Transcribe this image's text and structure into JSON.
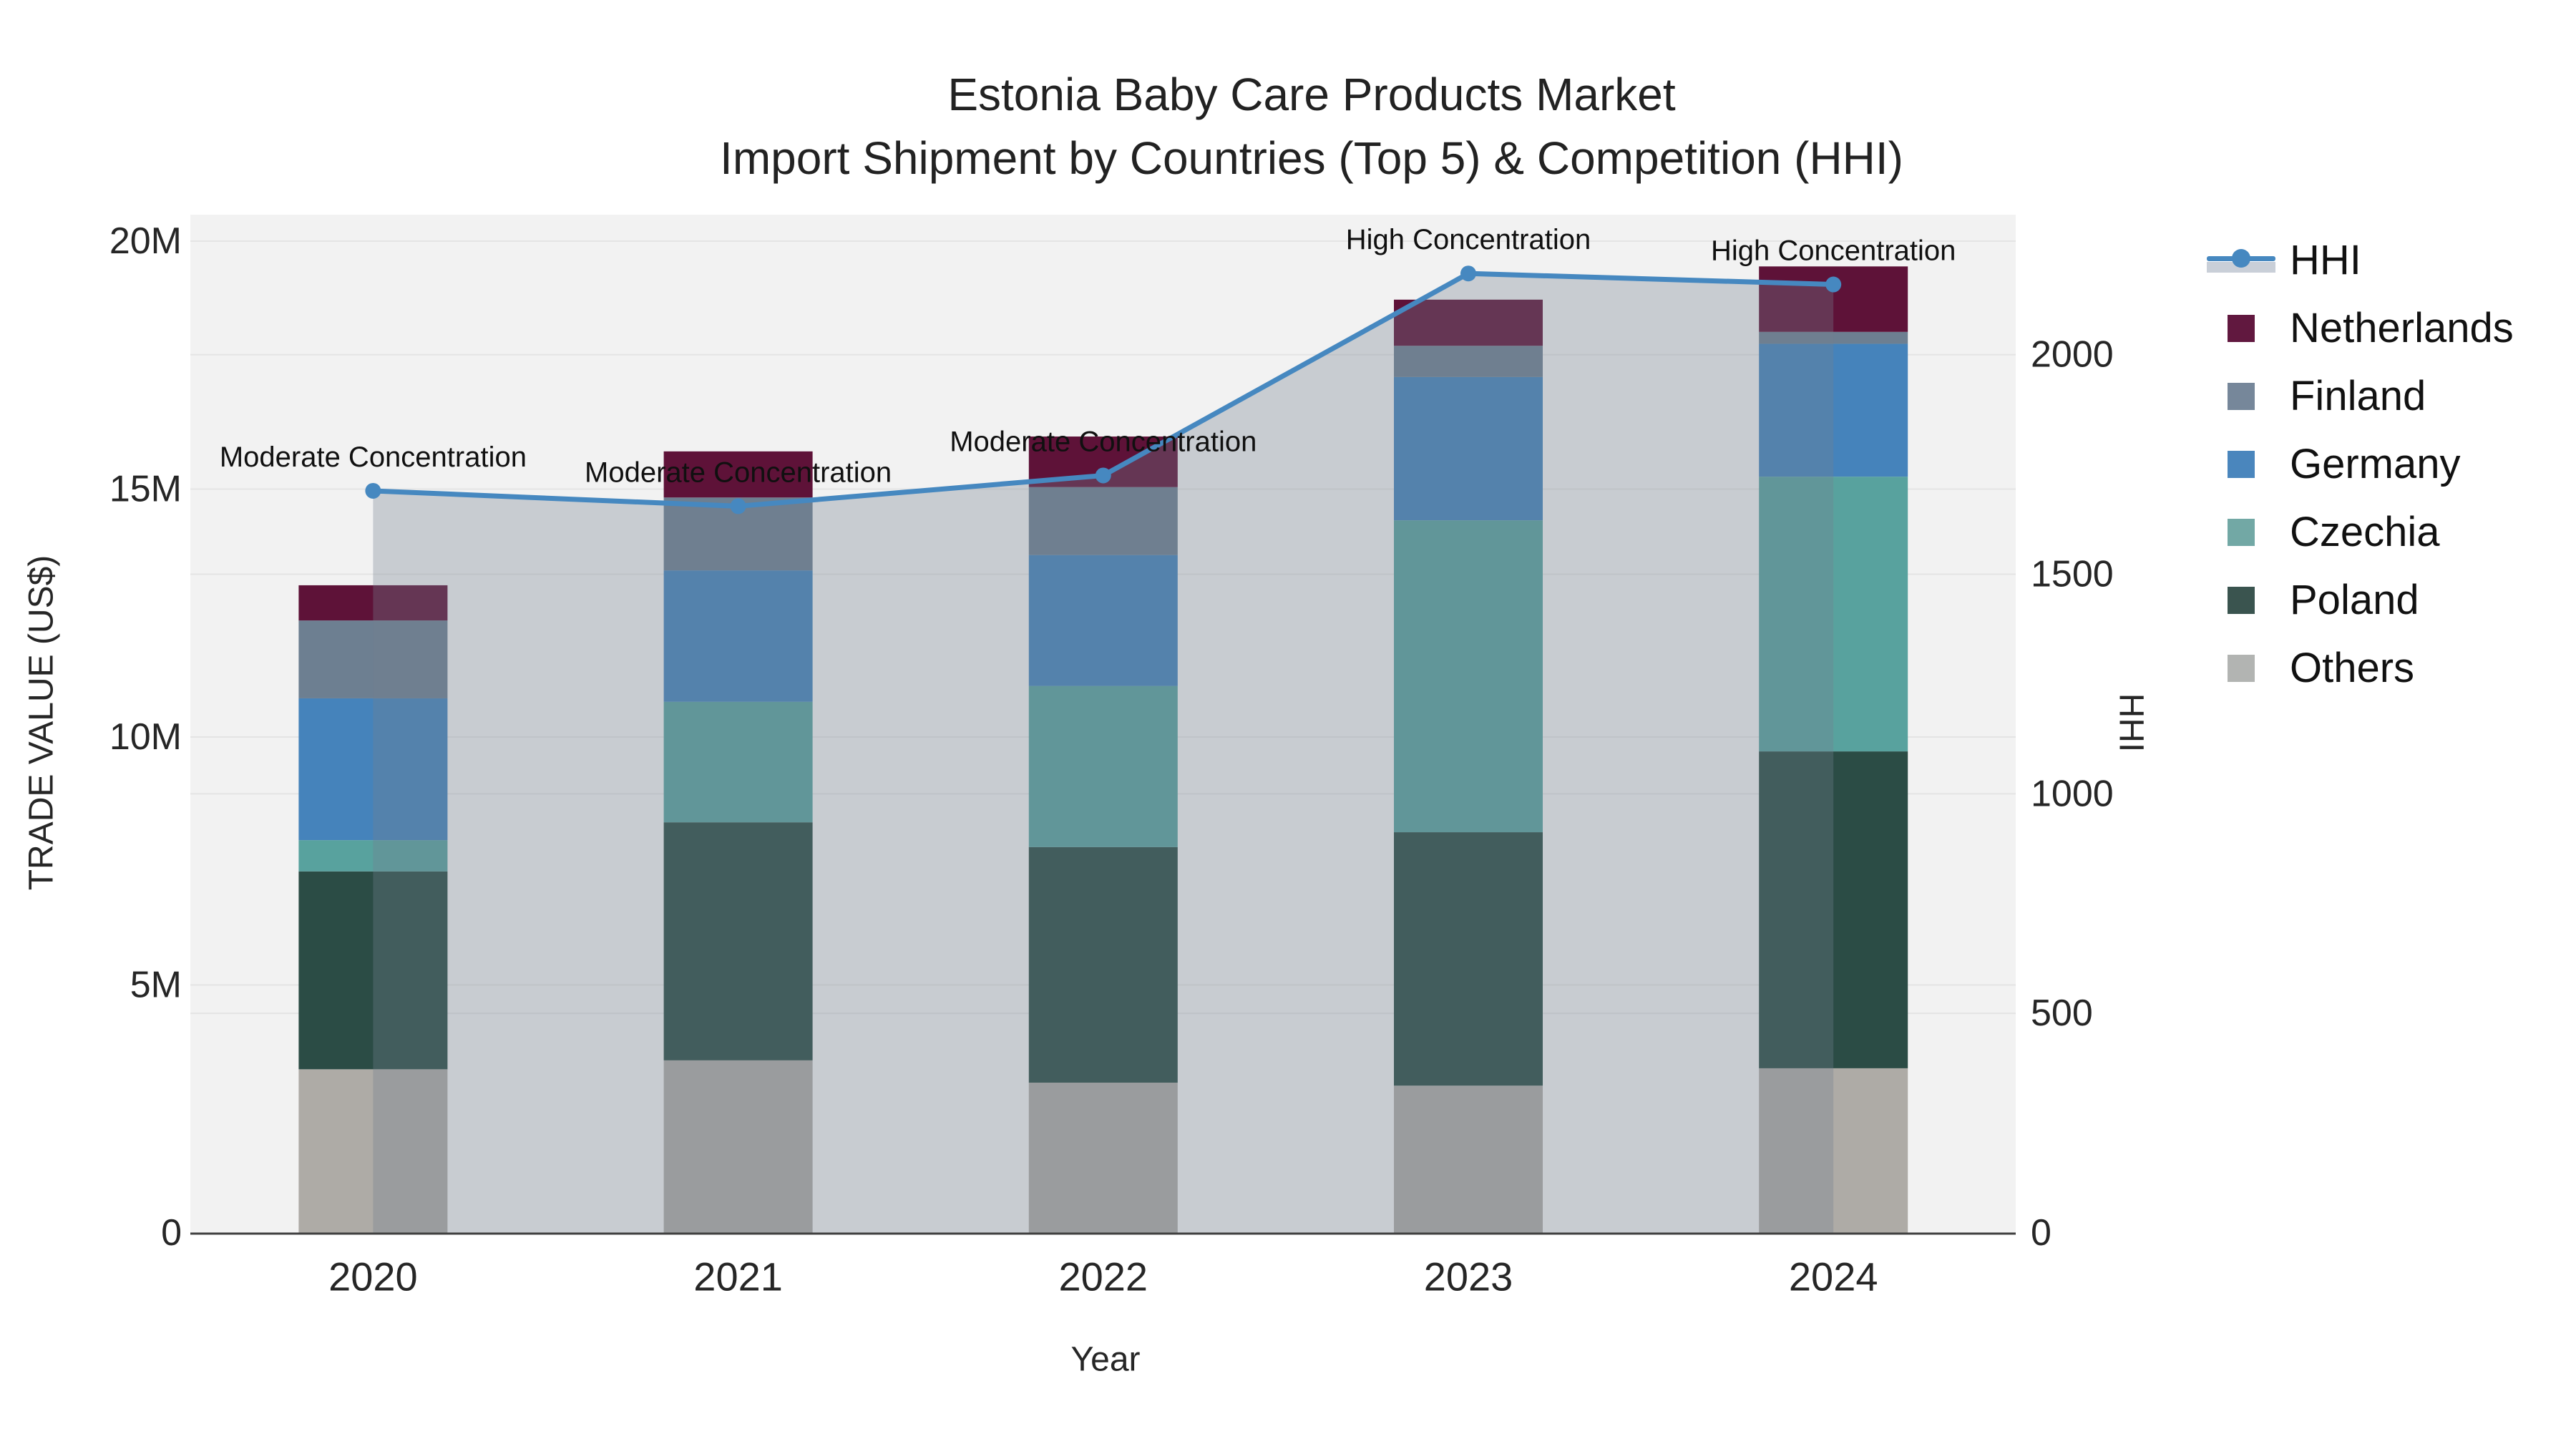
{
  "title": {
    "line1": "Estonia Baby Care Products Market",
    "line2": "Import Shipment by Countries (Top 5) & Competition (HHI)"
  },
  "chart_data": {
    "type": "combo: stacked bar (left axis) + line with area (right axis)",
    "categories": [
      "2020",
      "2021",
      "2022",
      "2023",
      "2024"
    ],
    "xlabel": "Year",
    "ylabel_left": "TRADE VALUE (US$)",
    "ylabel_right": "HHI",
    "unit_bars": "millions US$",
    "ylim_left_musd": [
      0,
      20.55
    ],
    "ylim_right_hhi": [
      0,
      2320
    ],
    "grid": "on",
    "legend_position": "right",
    "stack_series_bottom_to_top": [
      {
        "name": "Others",
        "color": "#aeaba6",
        "values_musd": [
          3.3,
          3.48,
          3.03,
          2.97,
          3.32
        ]
      },
      {
        "name": "Poland",
        "color": "#2b4c45",
        "values_musd": [
          3.99,
          4.8,
          4.75,
          5.11,
          6.39
        ]
      },
      {
        "name": "Czechia",
        "color": "#58a29e",
        "values_musd": [
          0.63,
          2.43,
          3.25,
          6.29,
          5.54
        ]
      },
      {
        "name": "Germany",
        "color": "#4583bb",
        "values_musd": [
          2.86,
          2.65,
          2.64,
          2.89,
          2.68
        ]
      },
      {
        "name": "Finland",
        "color": "#6d7f91",
        "values_musd": [
          1.57,
          1.47,
          1.37,
          0.63,
          0.24
        ]
      },
      {
        "name": "Netherlands",
        "color": "#5e1238",
        "values_musd": [
          0.71,
          0.93,
          1.02,
          0.93,
          1.32
        ]
      }
    ],
    "bar_totals_musd": [
      13.06,
      15.76,
      16.06,
      18.82,
      19.49
    ],
    "line_series": {
      "name": "HHI",
      "color": "#4688c0",
      "area_fill": "rgba(114,126,142,0.33)",
      "values": [
        1690,
        1655,
        1725,
        2185,
        2160
      ]
    },
    "annotations": [
      {
        "year": "2020",
        "text": "Moderate Concentration"
      },
      {
        "year": "2021",
        "text": "Moderate Concentration"
      },
      {
        "year": "2022",
        "text": "Moderate Concentration"
      },
      {
        "year": "2023",
        "text": "High Concentration"
      },
      {
        "year": "2024",
        "text": "High Concentration"
      }
    ],
    "yticks_left": [
      {
        "v": 0,
        "label": "0"
      },
      {
        "v": 5,
        "label": "5M"
      },
      {
        "v": 10,
        "label": "10M"
      },
      {
        "v": 15,
        "label": "15M"
      },
      {
        "v": 20,
        "label": "20M"
      }
    ],
    "yticks_right": [
      {
        "v": 0,
        "label": "0"
      },
      {
        "v": 500,
        "label": "500"
      },
      {
        "v": 1000,
        "label": "1000"
      },
      {
        "v": 1500,
        "label": "1500"
      },
      {
        "v": 2000,
        "label": "2000"
      }
    ]
  },
  "legend": {
    "items": [
      {
        "label": "HHI",
        "type": "line",
        "color": "#4688c0",
        "band_color": "#c9cfd8"
      },
      {
        "label": "Netherlands",
        "type": "square",
        "color": "#61183f"
      },
      {
        "label": "Finland",
        "type": "square",
        "color": "#76879a"
      },
      {
        "label": "Germany",
        "type": "square",
        "color": "#4a86bd"
      },
      {
        "label": "Czechia",
        "type": "square",
        "color": "#72a8a5"
      },
      {
        "label": "Poland",
        "type": "square",
        "color": "#3a544f"
      },
      {
        "label": "Others",
        "type": "square",
        "color": "#b2b4b2"
      }
    ]
  },
  "colors": {
    "plot_bg": "#f2f2f2",
    "gridline": "#e4e4e4",
    "axis_line": "#3f3f3f",
    "text": "#262626",
    "annotation_text": "#101010"
  }
}
